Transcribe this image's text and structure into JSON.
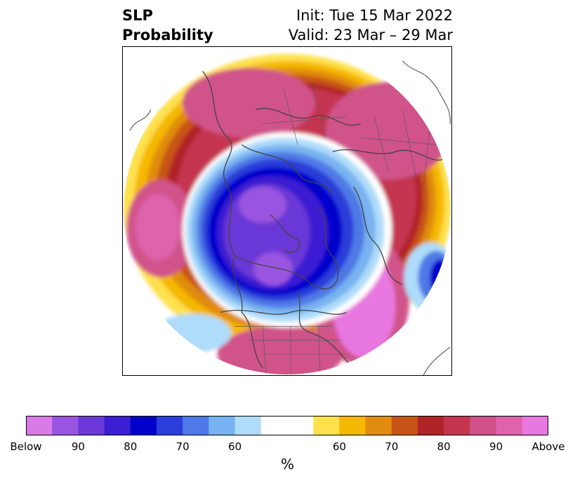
{
  "title": {
    "left_line1": "SLP",
    "left_line2": "Probability",
    "right_line1": "Init: Tue 15 Mar 2022",
    "right_line2": "Valid: 23 Mar – 29 Mar"
  },
  "colorbar": {
    "unit": "%",
    "colors": [
      "#d97ae6",
      "#9a55e0",
      "#6a38d6",
      "#3a1ed2",
      "#0000cc",
      "#2a3ed9",
      "#4f79e6",
      "#78b2f0",
      "#aedcfa",
      "#ffffff",
      "#ffffff",
      "#ffe14d",
      "#f5b800",
      "#e08c10",
      "#c85418",
      "#b02428",
      "#c43650",
      "#d0528a",
      "#de62ac",
      "#e878e0"
    ],
    "tick_labels": [
      "Below",
      "90",
      "80",
      "70",
      "60",
      "",
      "60",
      "70",
      "80",
      "90",
      "Above"
    ]
  }
}
